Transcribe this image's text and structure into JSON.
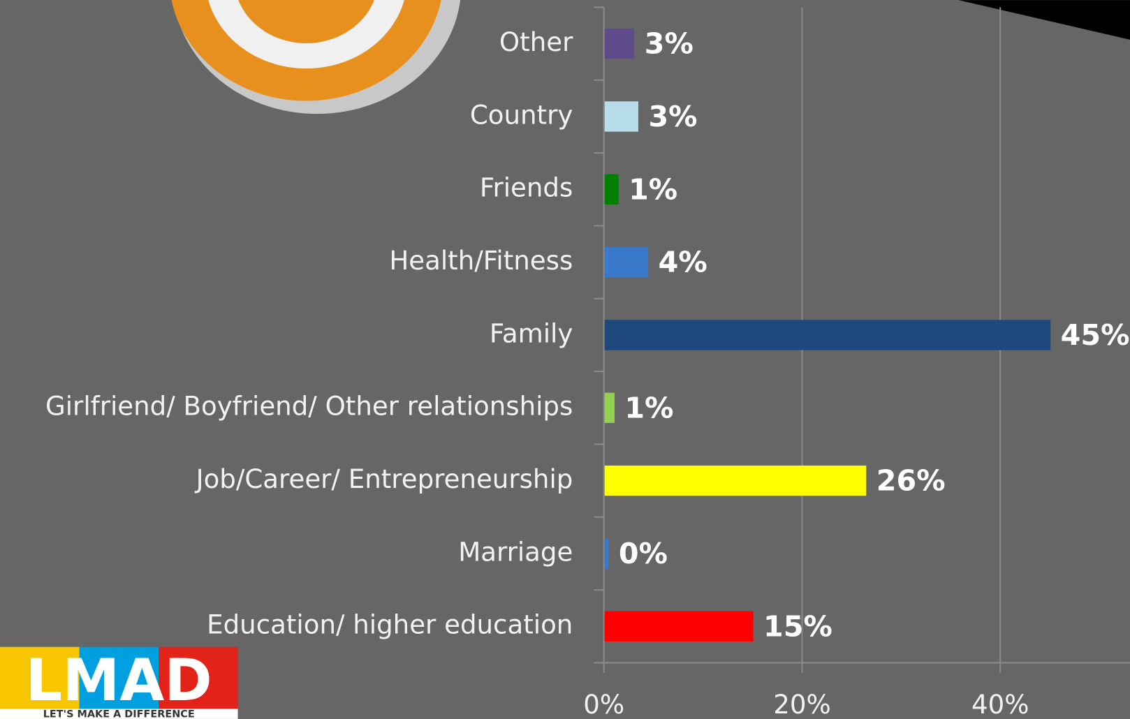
{
  "chart_data": {
    "type": "hbar",
    "categories": [
      "Other",
      "Country",
      "Friends",
      "Health/Fitness",
      "Family",
      "Girlfriend/ Boyfriend/ Other relationships",
      "Job/Career/ Entrepreneurship",
      "Marriage",
      "Education/ higher education"
    ],
    "values": [
      3,
      3.4,
      1.4,
      4.4,
      45,
      1,
      26.4,
      0.4,
      15
    ],
    "value_labels": [
      "3%",
      "3%",
      "1%",
      "4%",
      "45%",
      "1%",
      "26%",
      "0%",
      "15%"
    ],
    "colors": [
      "#5f4b8b",
      "#b7dde8",
      "#008000",
      "#3a78c9",
      "#1f497d",
      "#92d050",
      "#ffff00",
      "#3a78c9",
      "#ff0000"
    ],
    "xlim": [
      0,
      53
    ],
    "xticks": [
      {
        "value": 0,
        "label": "0%"
      },
      {
        "value": 20,
        "label": "20%"
      },
      {
        "value": 40,
        "label": "40%"
      }
    ],
    "grid": true
  },
  "logo": {
    "title": "LMAD",
    "tagline": "LET'S MAKE A DIFFERENCE"
  }
}
